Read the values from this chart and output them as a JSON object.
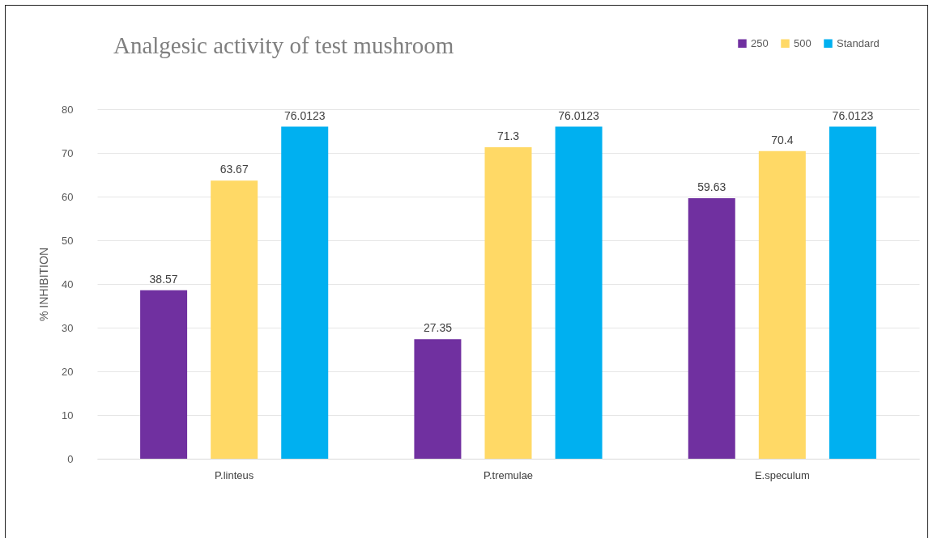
{
  "chart_data": {
    "type": "bar",
    "title": "Analgesic activity of test mushroom",
    "ylabel": "% INHIBITION",
    "categories": [
      "P.linteus",
      "P.tremulae",
      "E.speculum"
    ],
    "series": [
      {
        "name": "250",
        "color": "#7030a0",
        "values": [
          38.57,
          27.35,
          59.63
        ]
      },
      {
        "name": "500",
        "color": "#ffd966",
        "values": [
          63.67,
          71.3,
          70.4
        ]
      },
      {
        "name": "Standard",
        "color": "#00b0f0",
        "values": [
          76.0123,
          76.0123,
          76.0123
        ]
      }
    ],
    "ylim": [
      0,
      80
    ],
    "yticks": [
      0,
      10,
      20,
      30,
      40,
      50,
      60,
      70,
      80
    ],
    "grid": "y",
    "legend": "top right",
    "data_labels": true
  }
}
